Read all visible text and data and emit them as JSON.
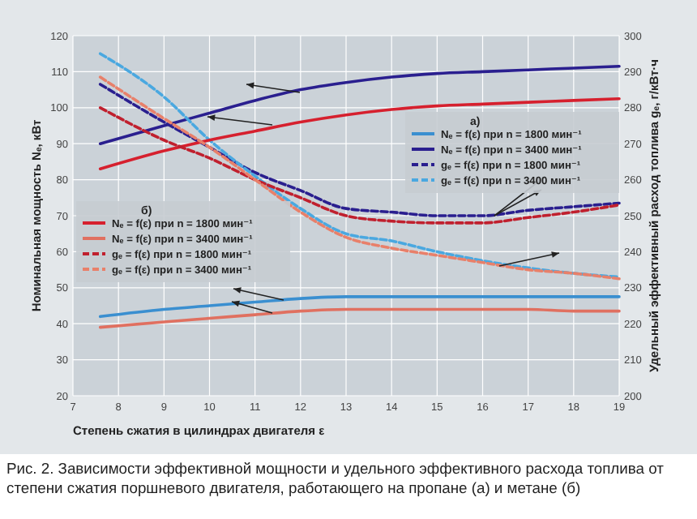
{
  "chart_data": {
    "type": "line",
    "xlabel": "Степень сжатия в цилиндрах двигателя ε",
    "ylabel": "Номинальная мощность Nₑ, кВт",
    "y2label": "Удельный эффективный расход топлива gₑ, г/кВт·ч",
    "x": [
      7.6,
      9,
      10,
      11,
      12,
      13,
      14,
      15,
      16,
      17,
      18,
      19
    ],
    "xlim": [
      7,
      19
    ],
    "xticks": [
      7,
      8,
      9,
      10,
      11,
      12,
      13,
      14,
      15,
      16,
      17,
      18,
      19
    ],
    "ylim": [
      20,
      120
    ],
    "yticks": [
      20,
      30,
      40,
      50,
      60,
      70,
      80,
      90,
      100,
      110,
      120
    ],
    "y2lim": [
      200,
      300
    ],
    "y2ticks": [
      200,
      210,
      220,
      230,
      240,
      250,
      260,
      270,
      280,
      290,
      300
    ],
    "grid": true,
    "legend": "right",
    "marker": "none",
    "series": [
      {
        "name": "Nₑ = f(ε) при n = 1800 мин⁻¹",
        "color": "#3a8fd0",
        "line_style": "solid",
        "values": [
          42,
          44,
          45,
          46,
          47,
          47.5,
          47.5,
          47.5,
          47.5,
          47.5,
          47.5,
          47.5
        ]
      },
      {
        "name": "Nₑ = f(ε) при n = 3400 мин⁻¹",
        "color": "#2a1f8f",
        "line_style": "solid",
        "values": [
          90,
          95,
          98.5,
          102,
          105,
          107,
          108.5,
          109.5,
          110,
          110.5,
          111,
          111.5
        ]
      },
      {
        "name": "gₑ = f(ε) при n = 1800 мин⁻¹",
        "color": "#2a1f8f",
        "line_style": "dashed",
        "axis": "y2",
        "values": [
          286.5,
          276,
          269,
          262,
          257,
          252,
          251,
          250,
          250,
          251.5,
          252.5,
          253.5
        ]
      },
      {
        "name": "gₑ = f(ε) при n = 3400 мин⁻¹",
        "color": "#4aa8e0",
        "line_style": "dashed",
        "axis": "y2",
        "values": [
          295,
          283,
          271,
          261,
          252,
          245,
          243,
          240,
          237.5,
          235.5,
          234,
          233
        ]
      },
      {
        "name": "Nₑ = f(ε) при n = 1800 мин⁻¹",
        "color": "#d6202e",
        "line_style": "solid",
        "values": [
          83,
          88,
          91,
          93.5,
          96,
          98,
          99.5,
          100.5,
          101,
          101.5,
          102,
          102.5
        ]
      },
      {
        "name": "Nₑ = f(ε) при n = 3400 мин⁻¹",
        "color": "#e07060",
        "line_style": "solid",
        "values": [
          39,
          40.5,
          41.5,
          42.5,
          43.5,
          44,
          44,
          44,
          44,
          44,
          43.5,
          43.5
        ]
      },
      {
        "name": "gₑ = f(ε) при n = 1800 мин⁻¹",
        "color": "#c0202e",
        "line_style": "dashed",
        "axis": "y2",
        "values": [
          280,
          271,
          266,
          260,
          255,
          250,
          248.5,
          248,
          248,
          249.5,
          251,
          253
        ]
      },
      {
        "name": "gₑ = f(ε) при n = 3400 мин⁻¹",
        "color": "#e8806a",
        "line_style": "dashed",
        "axis": "y2",
        "values": [
          288.5,
          277,
          269,
          260,
          251,
          244,
          241,
          239,
          237,
          235,
          234,
          232.5
        ]
      }
    ],
    "annotations": [
      "а)",
      "б)",
      "Рис. 2. Зависимости эффективной мощности и удельного эффективного расхода топлива от степени сжатия поршневого двигателя, работающего на пропане (а) и метане (б)"
    ]
  }
}
